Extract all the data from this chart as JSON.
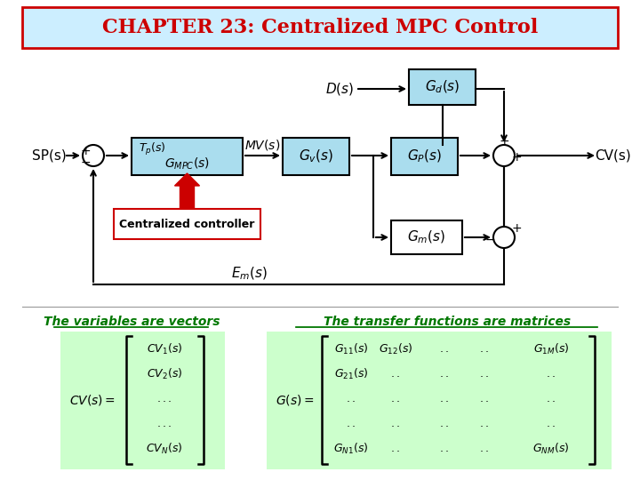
{
  "title": "CHAPTER 23: Centralized MPC Control",
  "title_color": "#cc0000",
  "title_bg": "#cceeff",
  "title_border": "#cc0000",
  "bg_color": "#ffffff",
  "block_fill": "#aaddee",
  "block_fill_white": "#ffffff",
  "block_fill_green": "#ccffcc",
  "red_arrow_color": "#cc0000",
  "green_text": "#007700",
  "label_sp": "SP(s)",
  "label_cv": "CV(s)",
  "label_cent": "Centralized controller",
  "label_vec": "The variables are vectors",
  "label_mat": "The transfer functions are matrices"
}
